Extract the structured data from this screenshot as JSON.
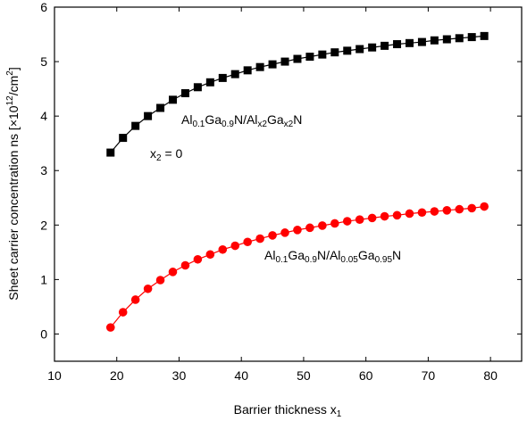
{
  "chart_data": {
    "type": "line",
    "title": "",
    "xlabel": "Barrier thickness x",
    "xlabel_sub": "1",
    "ylabel": "Sheet carrier concentration ns [×10",
    "ylabel_sup": "12",
    "ylabel_tail": "/cm",
    "ylabel_sup2": "2",
    "ylabel_end": "]",
    "xlim": [
      10,
      85
    ],
    "ylim": [
      -0.5,
      6
    ],
    "xticks": [
      10,
      20,
      30,
      40,
      50,
      60,
      70,
      80
    ],
    "yticks": [
      0,
      1,
      2,
      3,
      4,
      5,
      6
    ],
    "grid": false,
    "x": [
      19,
      21,
      23,
      25,
      27,
      29,
      31,
      33,
      35,
      37,
      39,
      41,
      43,
      45,
      47,
      49,
      51,
      53,
      55,
      57,
      59,
      61,
      63,
      65,
      67,
      69,
      71,
      73,
      75,
      77,
      79
    ],
    "series": [
      {
        "marker": "square",
        "color": "#000000",
        "values": [
          3.33,
          3.6,
          3.82,
          4.0,
          4.15,
          4.3,
          4.42,
          4.53,
          4.62,
          4.7,
          4.77,
          4.84,
          4.9,
          4.95,
          5.0,
          5.05,
          5.09,
          5.13,
          5.17,
          5.2,
          5.23,
          5.26,
          5.29,
          5.32,
          5.34,
          5.36,
          5.39,
          5.41,
          5.43,
          5.45,
          5.47
        ]
      },
      {
        "marker": "circle",
        "color": "#ff0000",
        "values": [
          0.12,
          0.4,
          0.63,
          0.83,
          0.99,
          1.14,
          1.26,
          1.37,
          1.46,
          1.55,
          1.62,
          1.69,
          1.75,
          1.81,
          1.86,
          1.91,
          1.95,
          1.99,
          2.03,
          2.07,
          2.1,
          2.13,
          2.16,
          2.18,
          2.21,
          2.23,
          2.25,
          2.27,
          2.29,
          2.31,
          2.34
        ]
      }
    ],
    "annotations": [
      {
        "id": "upper",
        "parts": [
          "Al",
          "0.1",
          "Ga",
          "0.9",
          "N/Al",
          "x2",
          "Ga",
          "x2",
          "N"
        ]
      },
      {
        "id": "x2",
        "parts": [
          "x",
          "2",
          " = 0"
        ]
      },
      {
        "id": "lower",
        "parts": [
          "Al",
          "0.1",
          "Ga",
          "0.9",
          "N/Al",
          "0.05",
          "Ga",
          "0.95",
          "N"
        ]
      }
    ]
  }
}
